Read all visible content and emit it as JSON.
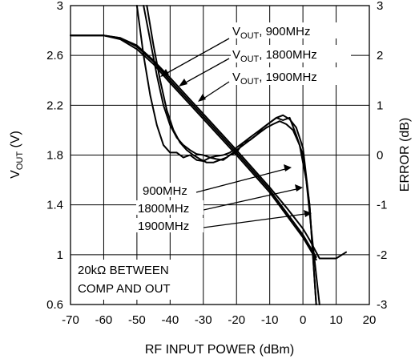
{
  "chart_data": {
    "type": "line",
    "xlabel": "RF INPUT POWER (dBm)",
    "ylabel_left": {
      "main": "V",
      "sub": "OUT",
      "unit": " (V)"
    },
    "ylabel_right": "ERROR (dB)",
    "xlim": [
      -70,
      20
    ],
    "ylim_left": [
      0.6,
      3.0
    ],
    "ylim_right": [
      -3,
      3
    ],
    "x_ticks": [
      "-70",
      "-60",
      "-50",
      "-40",
      "-30",
      "-20",
      "-10",
      "0",
      "10",
      "20"
    ],
    "y_left_ticks": [
      "0.6",
      "1",
      "1.4",
      "1.8",
      "2.2",
      "2.6",
      "3"
    ],
    "y_right_ticks": [
      "-3",
      "-2",
      "-1",
      "0",
      "1",
      "2",
      "3"
    ],
    "grid": true,
    "series": [
      {
        "name": "900MHz",
        "axis": "left",
        "x": [
          -70,
          -60,
          -55,
          -50,
          -45,
          -40,
          -30,
          -20,
          -10,
          -5,
          0,
          2,
          5,
          10,
          13
        ],
        "y": [
          2.76,
          2.76,
          2.74,
          2.68,
          2.56,
          2.42,
          2.13,
          1.84,
          1.54,
          1.38,
          1.21,
          1.12,
          0.97,
          0.97,
          1.02
        ]
      },
      {
        "name": "1800MHz",
        "axis": "left",
        "x": [
          -70,
          -60,
          -55,
          -50,
          -45,
          -40,
          -30,
          -20,
          -10,
          -5,
          0,
          2,
          4
        ],
        "y": [
          2.76,
          2.76,
          2.74,
          2.67,
          2.55,
          2.4,
          2.11,
          1.82,
          1.52,
          1.34,
          1.16,
          1.07,
          0.98
        ]
      },
      {
        "name": "1900MHz",
        "axis": "left",
        "x": [
          -70,
          -60,
          -55,
          -50,
          -45,
          -40,
          -30,
          -20,
          -10,
          -5,
          0,
          2,
          4
        ],
        "y": [
          2.76,
          2.76,
          2.73,
          2.65,
          2.53,
          2.38,
          2.09,
          1.8,
          1.5,
          1.32,
          1.14,
          1.05,
          0.96
        ]
      },
      {
        "name": "900MHz",
        "axis": "right",
        "x": [
          -50,
          -48,
          -46,
          -44,
          -42,
          -40,
          -38,
          -36,
          -34,
          -32,
          -30,
          -28,
          -26,
          -24,
          -22,
          -20,
          -18,
          -16,
          -14,
          -12,
          -10,
          -8,
          -6,
          -4,
          -2,
          0,
          2,
          3,
          4
        ],
        "y": [
          3.0,
          2.0,
          1.2,
          0.6,
          0.2,
          0.05,
          0.05,
          -0.05,
          0.0,
          -0.1,
          -0.12,
          -0.05,
          -0.08,
          -0.1,
          0.0,
          0.05,
          0.25,
          0.3,
          0.4,
          0.55,
          0.65,
          0.75,
          0.7,
          0.75,
          0.4,
          0.0,
          -1.0,
          -2.0,
          -3.0
        ]
      },
      {
        "name": "1800MHz",
        "axis": "right",
        "x": [
          -48,
          -46,
          -44,
          -42,
          -40,
          -38,
          -36,
          -34,
          -32,
          -30,
          -28,
          -26,
          -24,
          -22,
          -20,
          -18,
          -16,
          -14,
          -12,
          -10,
          -8,
          -6,
          -4,
          -2,
          0,
          2,
          4
        ],
        "y": [
          3.0,
          2.3,
          1.6,
          1.0,
          0.6,
          0.35,
          0.2,
          0.1,
          0.02,
          0.0,
          -0.05,
          -0.02,
          0.0,
          0.05,
          0.15,
          0.25,
          0.35,
          0.45,
          0.55,
          0.65,
          0.75,
          0.8,
          0.72,
          0.55,
          0.15,
          -1.0,
          -3.0
        ]
      },
      {
        "name": "1900MHz",
        "axis": "right",
        "x": [
          -47,
          -45,
          -43,
          -41,
          -39,
          -37,
          -35,
          -33,
          -31,
          -29,
          -27,
          -25,
          -23,
          -21,
          -19,
          -17,
          -15,
          -13,
          -11,
          -9,
          -7,
          -5,
          -3,
          -1,
          1,
          3,
          5
        ],
        "y": [
          3.0,
          2.2,
          1.5,
          0.9,
          0.5,
          0.25,
          0.1,
          0.0,
          -0.08,
          -0.15,
          -0.15,
          -0.1,
          -0.05,
          0.05,
          0.15,
          0.25,
          0.35,
          0.45,
          0.55,
          0.62,
          0.68,
          0.62,
          0.5,
          0.2,
          -0.5,
          -1.8,
          -3.0
        ]
      }
    ],
    "annotations": {
      "vout_900": {
        "main": "V",
        "sub": "OUT",
        "rest": ", 900MHz"
      },
      "vout_1800": {
        "main": "V",
        "sub": "OUT",
        "rest": ", 1800MHz"
      },
      "vout_1900": {
        "main": "V",
        "sub": "OUT",
        "rest": ", 1900MHz"
      },
      "err_900": "900MHz",
      "err_1800": "1800MHz",
      "err_1900": "1900MHz",
      "note_line1": "20kΩ BETWEEN",
      "note_line2": "COMP AND OUT"
    }
  }
}
